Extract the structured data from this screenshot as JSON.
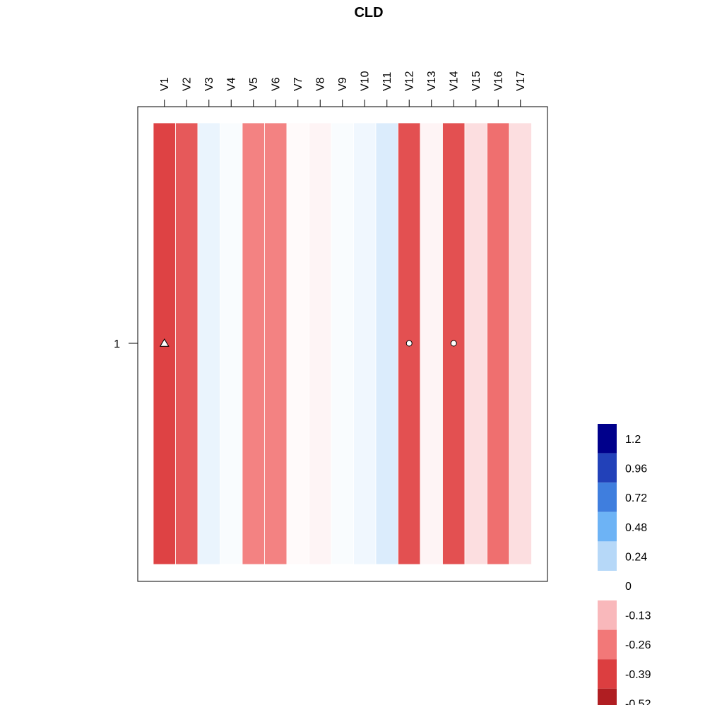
{
  "chart_data": {
    "type": "heatmap",
    "title": "CLD",
    "rows": [
      "1"
    ],
    "columns": [
      "V1",
      "V2",
      "V3",
      "V4",
      "V5",
      "V6",
      "V7",
      "V8",
      "V9",
      "V10",
      "V11",
      "V12",
      "V13",
      "V14",
      "V15",
      "V16",
      "V17"
    ],
    "values": [
      [
        -0.38,
        -0.33,
        0.07,
        0.02,
        -0.24,
        -0.24,
        -0.01,
        -0.02,
        0.02,
        0.05,
        0.12,
        -0.35,
        -0.02,
        -0.35,
        -0.06,
        -0.28,
        -0.06
      ]
    ],
    "markers": [
      {
        "column": "V1",
        "row": "1",
        "shape": "triangle"
      },
      {
        "column": "V12",
        "row": "1",
        "shape": "circle"
      },
      {
        "column": "V14",
        "row": "1",
        "shape": "circle"
      }
    ],
    "colorbar": {
      "labels": [
        "1.2",
        "0.96",
        "0.72",
        "0.48",
        "0.24",
        "0",
        "-0.13",
        "-0.26",
        "-0.39",
        "-0.52"
      ],
      "segments": [
        {
          "from": 0.96,
          "to": 1.2,
          "color": "#00008b"
        },
        {
          "from": 0.72,
          "to": 0.96,
          "color": "#2241b9"
        },
        {
          "from": 0.48,
          "to": 0.72,
          "color": "#3f7ede"
        },
        {
          "from": 0.24,
          "to": 0.48,
          "color": "#6db3f5"
        },
        {
          "from": 0,
          "to": 0.24,
          "color": "#b6d8f8"
        },
        {
          "from": -0.13,
          "to": 0,
          "color": "#f9b8bb"
        },
        {
          "from": -0.26,
          "to": -0.13,
          "color": "#f27878"
        },
        {
          "from": -0.39,
          "to": -0.26,
          "color": "#dc3e40"
        },
        {
          "from": -0.52,
          "to": -0.39,
          "color": "#b01e22"
        }
      ]
    }
  }
}
